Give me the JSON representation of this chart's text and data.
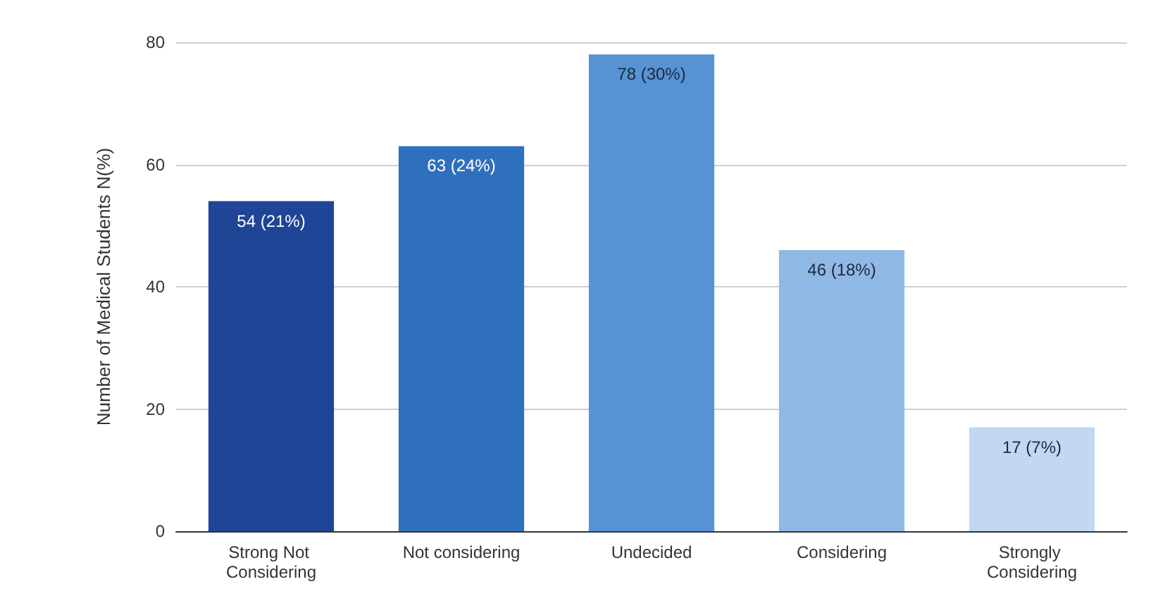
{
  "chart_data": {
    "type": "bar",
    "ylabel": "Number of Medical Students N(%)",
    "categories": [
      "Strong Not Considering",
      "Not considering",
      "Undecided",
      "Considering",
      "Strongly Considering"
    ],
    "values": [
      54,
      63,
      78,
      46,
      17
    ],
    "colors": [
      "#1f4596",
      "#2f70be",
      "#5793d4",
      "#90b8e4",
      "#c2d8f1"
    ],
    "value_labels": [
      "54 (21%)",
      "63 (24%)",
      "78 (30%)",
      "46 (18%)",
      "17 (7%)"
    ],
    "ylim": [
      0,
      80
    ],
    "yticks": [
      0,
      20,
      40,
      60,
      80
    ],
    "grid": "y"
  }
}
